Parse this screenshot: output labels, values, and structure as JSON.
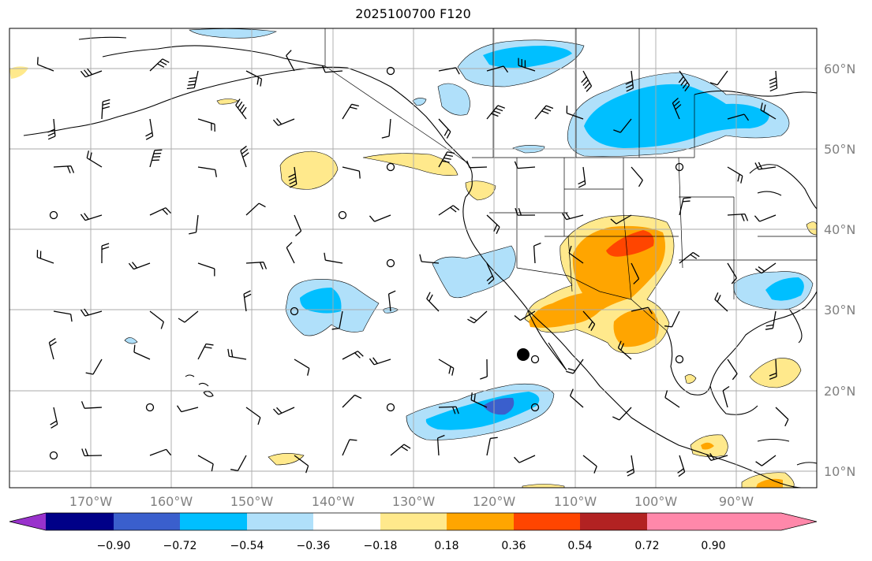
{
  "title": "2025100700 F120",
  "axes": {
    "lat_labels": [
      "60°N",
      "50°N",
      "40°N",
      "30°N",
      "20°N",
      "10°N"
    ],
    "lon_labels": [
      "170°W",
      "160°W",
      "150°W",
      "140°W",
      "130°W",
      "120°W",
      "110°W",
      "100°W",
      "90°W"
    ]
  },
  "colorbar": {
    "tick_labels": [
      "−0.90",
      "−0.72",
      "−0.54",
      "−0.36",
      "−0.18",
      "0.18",
      "0.36",
      "0.54",
      "0.72",
      "0.90"
    ],
    "colors": [
      "#9932cc",
      "#000088",
      "#3a5fcd",
      "#00bfff",
      "#b0e0fa",
      "#ffffff",
      "#ffe98c",
      "#ffa500",
      "#ff4500",
      "#b22222",
      "#ff88aa"
    ]
  },
  "colors": {
    "light_blue": "#b0e0fa",
    "cyan": "#00bfff",
    "royal_blue": "#3a5fcd",
    "light_yellow": "#ffe98c",
    "orange": "#ffa500",
    "red_orange": "#ff4500",
    "grid": "#aaaaaa"
  }
}
